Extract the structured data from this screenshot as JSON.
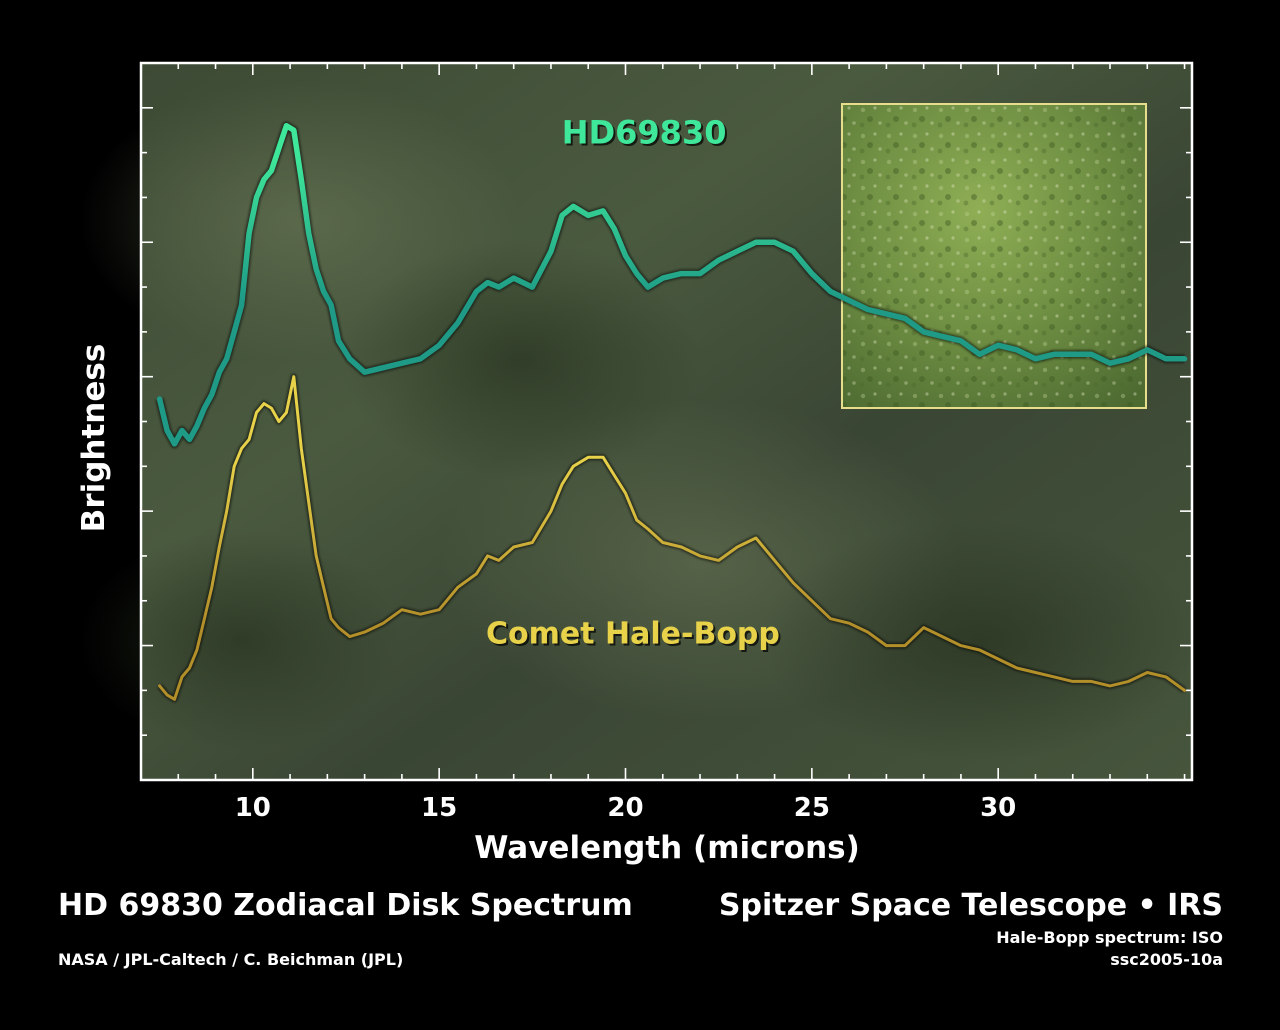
{
  "footer": {
    "title": "HD 69830 Zodiacal Disk Spectrum",
    "credit": "NASA / JPL-Caltech / C. Beichman (JPL)",
    "instrument": "Spitzer Space Telescope • IRS",
    "note": "Hale-Bopp spectrum: ISO",
    "id": "ssc2005-10a"
  },
  "chart_data": {
    "type": "line",
    "title": "HD 69830 Zodiacal Disk Spectrum",
    "xlabel": "Wavelength (microns)",
    "ylabel": "Brightness",
    "xlim": [
      7,
      35.2
    ],
    "ylim": [
      0,
      16
    ],
    "xticks": [
      10,
      15,
      20,
      25,
      30
    ],
    "grid": false,
    "legend": "inline labels",
    "colors": {
      "hd": "#3fe79a",
      "hd_dark": "#1e9a86",
      "comet": "#e8d24a",
      "comet_dark": "#b38f2a",
      "frame": "#ffffff",
      "inset_border": "#e6de8c"
    },
    "series": [
      {
        "name": "HD69830",
        "label_at": [
          20.5,
          14.2
        ],
        "x": [
          7.5,
          7.7,
          7.9,
          8.1,
          8.3,
          8.5,
          8.7,
          8.9,
          9.1,
          9.3,
          9.5,
          9.7,
          9.9,
          10.1,
          10.3,
          10.5,
          10.7,
          10.9,
          11.1,
          11.3,
          11.5,
          11.7,
          11.9,
          12.1,
          12.3,
          12.6,
          13.0,
          13.5,
          14.0,
          14.5,
          15.0,
          15.5,
          16.0,
          16.3,
          16.6,
          17.0,
          17.5,
          18.0,
          18.3,
          18.6,
          19.0,
          19.4,
          19.7,
          20.0,
          20.3,
          20.6,
          21.0,
          21.5,
          22.0,
          22.5,
          23.0,
          23.5,
          24.0,
          24.5,
          25.0,
          25.5,
          26.0,
          26.5,
          27.0,
          27.5,
          28.0,
          28.5,
          29.0,
          29.5,
          30.0,
          30.5,
          31.0,
          31.5,
          32.0,
          32.5,
          33.0,
          33.5,
          34.0,
          34.5,
          35.0
        ],
        "y": [
          8.5,
          7.8,
          7.5,
          7.8,
          7.6,
          7.9,
          8.3,
          8.6,
          9.1,
          9.4,
          10.0,
          10.6,
          12.2,
          13.0,
          13.4,
          13.6,
          14.1,
          14.6,
          14.5,
          13.4,
          12.2,
          11.4,
          10.9,
          10.6,
          9.8,
          9.4,
          9.1,
          9.2,
          9.3,
          9.4,
          9.7,
          10.2,
          10.9,
          11.1,
          11.0,
          11.2,
          11.0,
          11.8,
          12.6,
          12.8,
          12.6,
          12.7,
          12.3,
          11.7,
          11.3,
          11.0,
          11.2,
          11.3,
          11.3,
          11.6,
          11.8,
          12.0,
          12.0,
          11.8,
          11.3,
          10.9,
          10.7,
          10.5,
          10.4,
          10.3,
          10.0,
          9.9,
          9.8,
          9.5,
          9.7,
          9.6,
          9.4,
          9.5,
          9.5,
          9.5,
          9.3,
          9.4,
          9.6,
          9.4,
          9.4
        ]
      },
      {
        "name": "Comet Hale-Bopp",
        "label_at": [
          20.2,
          3.05
        ],
        "x": [
          7.5,
          7.7,
          7.9,
          8.1,
          8.3,
          8.5,
          8.7,
          8.9,
          9.1,
          9.3,
          9.5,
          9.7,
          9.9,
          10.1,
          10.3,
          10.5,
          10.7,
          10.9,
          11.1,
          11.3,
          11.5,
          11.7,
          11.9,
          12.1,
          12.3,
          12.6,
          13.0,
          13.5,
          14.0,
          14.5,
          15.0,
          15.5,
          16.0,
          16.3,
          16.6,
          17.0,
          17.5,
          18.0,
          18.3,
          18.6,
          19.0,
          19.4,
          19.7,
          20.0,
          20.3,
          20.6,
          21.0,
          21.5,
          22.0,
          22.5,
          23.0,
          23.5,
          24.0,
          24.5,
          25.0,
          25.5,
          26.0,
          26.5,
          27.0,
          27.5,
          28.0,
          28.5,
          29.0,
          29.5,
          30.0,
          30.5,
          31.0,
          31.5,
          32.0,
          32.5,
          33.0,
          33.5,
          34.0,
          34.5,
          35.0
        ],
        "y": [
          2.1,
          1.9,
          1.8,
          2.3,
          2.5,
          2.9,
          3.6,
          4.3,
          5.2,
          6.0,
          7.0,
          7.4,
          7.6,
          8.2,
          8.4,
          8.3,
          8.0,
          8.2,
          9.0,
          7.4,
          6.2,
          5.0,
          4.3,
          3.6,
          3.4,
          3.2,
          3.3,
          3.5,
          3.8,
          3.7,
          3.8,
          4.3,
          4.6,
          5.0,
          4.9,
          5.2,
          5.3,
          6.0,
          6.6,
          7.0,
          7.2,
          7.2,
          6.8,
          6.4,
          5.8,
          5.6,
          5.3,
          5.2,
          5.0,
          4.9,
          5.2,
          5.4,
          4.9,
          4.4,
          4.0,
          3.6,
          3.5,
          3.3,
          3.0,
          3.0,
          3.4,
          3.2,
          3.0,
          2.9,
          2.7,
          2.5,
          2.4,
          2.3,
          2.2,
          2.2,
          2.1,
          2.2,
          2.4,
          2.3,
          2.0
        ]
      }
    ]
  }
}
